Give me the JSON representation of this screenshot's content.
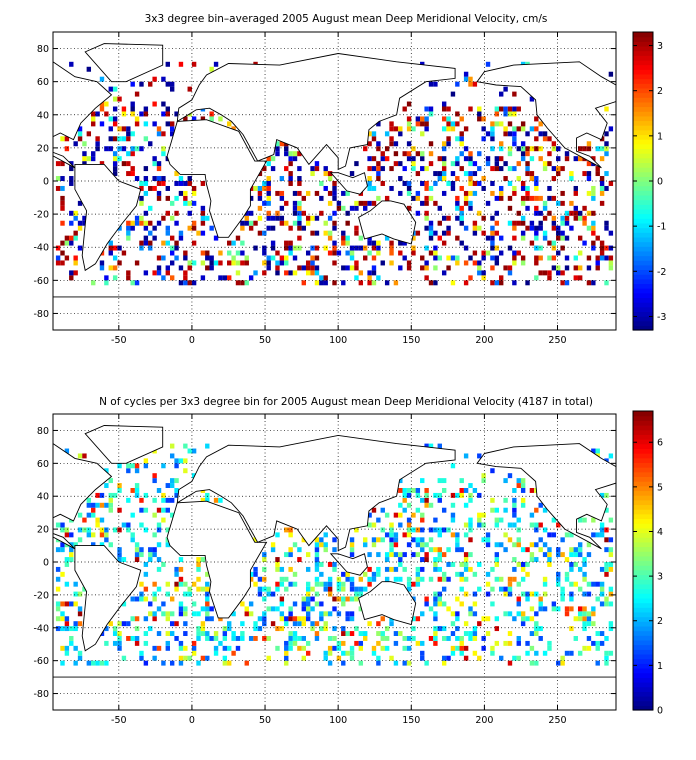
{
  "chart_data": [
    {
      "type": "heatmap",
      "title": "3x3 degree bin–averaged 2005 August mean Deep Meridional Velocity, cm/s",
      "xlabel": "",
      "ylabel": "",
      "xlim": [
        -95,
        290
      ],
      "ylim": [
        -90,
        90
      ],
      "x_ticks": [
        -50,
        0,
        50,
        100,
        150,
        200,
        250
      ],
      "y_ticks": [
        80,
        60,
        40,
        20,
        0,
        -20,
        -40,
        -60,
        -80
      ],
      "grid": true,
      "colorbar": {
        "range": [
          -3.3,
          3.3
        ],
        "ticks": [
          3,
          2,
          1,
          0,
          -1,
          -2,
          -3
        ],
        "colormap": "jet"
      },
      "bin_size_deg": 3,
      "seed": 17
    },
    {
      "type": "heatmap",
      "title": "N of cycles per 3x3 degree bin for 2005 August mean Deep Meridional Velocity (4187 in total)",
      "xlabel": "",
      "ylabel": "",
      "xlim": [
        -95,
        290
      ],
      "ylim": [
        -90,
        90
      ],
      "x_ticks": [
        -50,
        0,
        50,
        100,
        150,
        200,
        250
      ],
      "y_ticks": [
        80,
        60,
        40,
        20,
        0,
        -20,
        -40,
        -60,
        -80
      ],
      "grid": true,
      "colorbar": {
        "range": [
          0,
          6.7
        ],
        "ticks": [
          6,
          5,
          4,
          3,
          2,
          1,
          0
        ],
        "colormap": "jet"
      },
      "bin_size_deg": 3,
      "total_cycles": 4187,
      "seed": 53
    }
  ],
  "colors": {
    "frame": "#000000",
    "grid": "#000000",
    "coast": "#000000",
    "background": "#ffffff"
  }
}
